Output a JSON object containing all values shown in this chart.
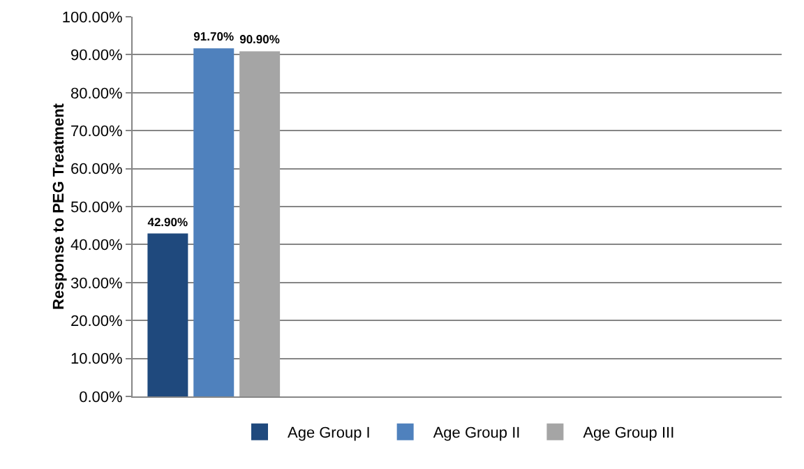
{
  "chart_data": {
    "type": "bar",
    "ylabel": "Response to PEG Treatment",
    "categories": [
      null,
      null,
      null,
      null
    ],
    "series": [
      {
        "name": "Age Group I",
        "color": "#1f497d",
        "values": [
          42.9,
          null,
          null,
          null
        ],
        "value_labels": [
          "42.90%",
          null,
          null,
          null
        ]
      },
      {
        "name": "Age Group II",
        "color": "#4f81bd",
        "values": [
          91.7,
          null,
          null,
          null
        ],
        "value_labels": [
          "91.70%",
          null,
          null,
          null
        ]
      },
      {
        "name": "Age Group III",
        "color": "#a5a5a5",
        "values": [
          90.9,
          null,
          null,
          null
        ],
        "value_labels": [
          "90.90%",
          null,
          null,
          null
        ]
      }
    ],
    "ylim": [
      0,
      100
    ],
    "yticks": [
      {
        "value": 0,
        "label": "0.00%"
      },
      {
        "value": 10,
        "label": "10.00%"
      },
      {
        "value": 20,
        "label": "20.00%"
      },
      {
        "value": 30,
        "label": "30.00%"
      },
      {
        "value": 40,
        "label": "40.00%"
      },
      {
        "value": 50,
        "label": "50.00%"
      },
      {
        "value": 60,
        "label": "60.00%"
      },
      {
        "value": 70,
        "label": "70.00%"
      },
      {
        "value": 80,
        "label": "80.00%"
      },
      {
        "value": 90,
        "label": "90.00%"
      },
      {
        "value": 100,
        "label": "100.00%"
      }
    ],
    "grid": "y",
    "legend": "bottom"
  }
}
